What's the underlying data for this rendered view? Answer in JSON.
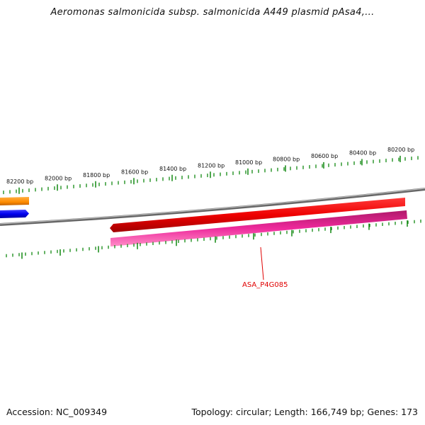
{
  "title": "Aeromonas salmonicida subsp. salmonicida A449 plasmid pAsa4,...",
  "ruler": {
    "labels": [
      "82200 bp",
      "82000 bp",
      "81800 bp",
      "81600 bp",
      "81400 bp",
      "81200 bp",
      "81000 bp",
      "80800 bp",
      "80600 bp",
      "80400 bp",
      "80200 bp"
    ]
  },
  "genes": [
    {
      "label": "ASA_P4G085",
      "strand": "reverse",
      "color": "#ee0000"
    },
    {
      "label": "",
      "strand": "forward",
      "color": "#ee2a9c"
    },
    {
      "label": "",
      "strand": "forward",
      "color": "#ff8c00"
    },
    {
      "label": "",
      "strand": "forward",
      "color": "#0000ee"
    }
  ],
  "colors": {
    "backbone": "#888888",
    "ticks": "#118811"
  },
  "footer": {
    "accession": "Accession: NC_009349",
    "summary": "Topology: circular; Length: 166,749 bp; Genes: 173"
  }
}
